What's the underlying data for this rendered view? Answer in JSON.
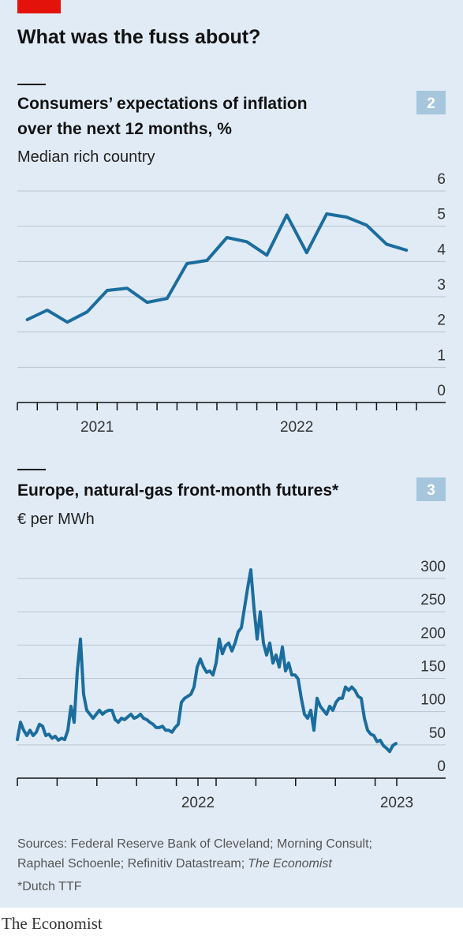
{
  "title": "What was the fuss about?",
  "sources": [
    "Sources: Federal Reserve Bank of Cleveland; Morning Consult;",
    "Raphael Schoenle; Refinitiv Datastream;",
    "The Economist"
  ],
  "footnote": "*Dutch TTF",
  "brand": "The Economist",
  "chart_data": [
    {
      "type": "line",
      "number": "2",
      "title": [
        "Consumers’ expectations of inflation",
        "over the next 12 months, %"
      ],
      "subtitle": "Median rich country",
      "x": [
        0,
        1,
        2,
        3,
        4,
        5,
        6,
        7,
        8,
        9,
        10,
        11,
        12,
        13,
        14,
        15,
        16,
        17,
        18,
        19
      ],
      "series": [
        {
          "color": "#1b6d9e",
          "values": [
            2.35,
            2.62,
            2.28,
            2.57,
            3.18,
            3.24,
            2.84,
            2.95,
            3.94,
            4.03,
            4.68,
            4.56,
            4.18,
            5.32,
            4.25,
            5.35,
            5.26,
            5.03,
            4.49,
            4.32
          ]
        }
      ],
      "xlim": [
        -0.5,
        19.5
      ],
      "xticks": [
        {
          "value": 3.5,
          "label": "2021"
        },
        {
          "value": 13.5,
          "label": "2022"
        }
      ],
      "xminor": [
        -0.5,
        0.5,
        1.5,
        2.5,
        3.5,
        4.5,
        5.5,
        6.5,
        7.5,
        8.5,
        9.5,
        10.5,
        11.5,
        12.5,
        13.5,
        14.5,
        15.5,
        16.5,
        17.5,
        18.5,
        19.5
      ],
      "ylim": [
        0,
        6
      ],
      "yticks": [
        0,
        1,
        2,
        3,
        4,
        5,
        6
      ],
      "grid": true
    },
    {
      "type": "line",
      "number": "3",
      "title": [
        "Europe, natural-gas front-month futures*"
      ],
      "subtitle": "€ per MWh",
      "x": [
        0,
        1,
        2,
        3,
        4,
        5,
        6,
        7,
        8,
        9,
        10,
        11,
        12,
        13,
        14,
        15,
        16,
        17,
        18,
        19,
        20,
        21,
        22,
        23,
        24,
        25,
        26,
        27,
        28,
        29,
        30,
        31,
        32,
        33,
        34,
        35,
        36,
        37,
        38,
        39,
        40,
        41,
        42,
        43,
        44,
        45,
        46,
        47,
        48,
        49,
        50,
        51,
        52,
        53,
        54,
        55,
        56,
        57,
        58,
        59,
        60,
        61,
        62,
        63,
        64,
        65,
        66,
        67,
        68,
        69,
        70,
        71,
        72,
        73,
        74,
        75,
        76,
        77,
        78,
        79,
        80,
        81,
        82,
        83,
        84,
        85,
        86,
        87,
        88,
        89,
        90,
        91,
        92,
        93,
        94,
        95,
        96,
        97,
        98,
        99,
        100,
        101,
        102,
        103,
        104,
        105,
        106,
        107,
        108,
        109,
        110,
        111,
        112,
        113,
        114,
        115,
        116,
        117,
        118,
        119,
        120
      ],
      "series": [
        {
          "color": "#1b6d9e",
          "values": [
            58,
            84,
            72,
            64,
            72,
            64,
            69,
            81,
            78,
            64,
            66,
            60,
            63,
            57,
            60,
            58,
            72,
            108,
            84,
            161,
            209,
            126,
            102,
            96,
            90,
            96,
            102,
            96,
            100,
            102,
            102,
            88,
            84,
            90,
            88,
            92,
            96,
            90,
            92,
            96,
            90,
            88,
            84,
            81,
            76,
            76,
            78,
            72,
            72,
            69,
            76,
            81,
            114,
            120,
            123,
            126,
            137,
            167,
            179,
            167,
            159,
            161,
            155,
            173,
            209,
            187,
            199,
            203,
            191,
            203,
            220,
            226,
            256,
            286,
            313,
            256,
            209,
            250,
            203,
            185,
            203,
            173,
            185,
            167,
            197,
            161,
            173,
            155,
            155,
            149,
            120,
            96,
            90,
            102,
            72,
            120,
            108,
            102,
            96,
            108,
            102,
            114,
            120,
            120,
            137,
            132,
            137,
            132,
            123,
            120,
            90,
            72,
            66,
            64,
            55,
            57,
            49,
            45,
            40,
            49,
            52
          ]
        }
      ],
      "xlim": [
        0,
        126.5
      ],
      "xticks": [
        {
          "value": 57.25,
          "label": "2022"
        },
        {
          "value": 120.25,
          "label": "2023"
        }
      ],
      "xminor": [
        0,
        12.6,
        25.2,
        37.8,
        50.4,
        63,
        75.6,
        88.2,
        100.8,
        113.4
      ],
      "ylim": [
        0,
        300
      ],
      "yticks": [
        0,
        50,
        100,
        150,
        200,
        250,
        300
      ],
      "grid": true
    }
  ]
}
